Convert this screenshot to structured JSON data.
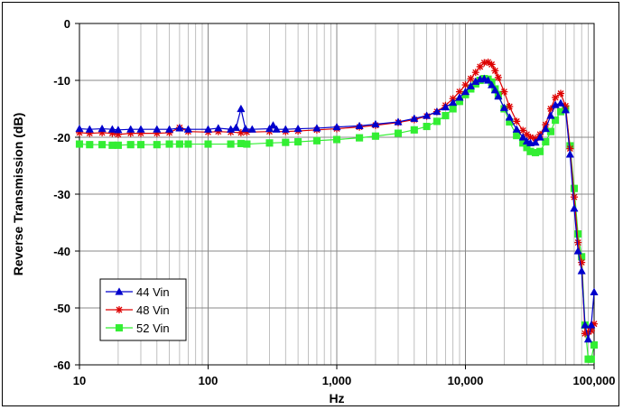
{
  "chart_data": {
    "type": "line",
    "title": "",
    "xlabel": "Hz",
    "ylabel": "Reverse Transmission (dB)",
    "x_scale": "log",
    "xlim": [
      10,
      100000
    ],
    "ylim": [
      -60,
      0
    ],
    "x_ticks": [
      10,
      100,
      1000,
      10000,
      100000
    ],
    "x_tick_labels": [
      "10",
      "100",
      "1,000",
      "10,000",
      "100,000"
    ],
    "y_ticks": [
      0,
      -10,
      -20,
      -30,
      -40,
      -50,
      -60
    ],
    "y_tick_labels": [
      "0",
      "-10",
      "-20",
      "-30",
      "-40",
      "-50",
      "-60"
    ],
    "grid": true,
    "legend_position": "bottom-left",
    "series": [
      {
        "name": "44 Vin",
        "color": "#0000cc",
        "marker": "triangle",
        "points": [
          [
            10,
            -18.5
          ],
          [
            12,
            -18.6
          ],
          [
            15,
            -18.5
          ],
          [
            18,
            -18.6
          ],
          [
            20,
            -18.7
          ],
          [
            25,
            -18.6
          ],
          [
            30,
            -18.6
          ],
          [
            40,
            -18.6
          ],
          [
            50,
            -18.6
          ],
          [
            60,
            -18.4
          ],
          [
            70,
            -18.6
          ],
          [
            100,
            -18.6
          ],
          [
            120,
            -18.4
          ],
          [
            150,
            -18.6
          ],
          [
            165,
            -18.3
          ],
          [
            180,
            -15.0
          ],
          [
            195,
            -18.5
          ],
          [
            220,
            -18.6
          ],
          [
            300,
            -18.5
          ],
          [
            320,
            -17.9
          ],
          [
            340,
            -18.6
          ],
          [
            400,
            -18.6
          ],
          [
            500,
            -18.5
          ],
          [
            700,
            -18.4
          ],
          [
            1000,
            -18.2
          ],
          [
            1500,
            -18.0
          ],
          [
            2000,
            -17.7
          ],
          [
            3000,
            -17.3
          ],
          [
            4000,
            -16.7
          ],
          [
            5000,
            -16.2
          ],
          [
            6000,
            -15.5
          ],
          [
            7000,
            -14.7
          ],
          [
            8000,
            -13.9
          ],
          [
            9000,
            -13.0
          ],
          [
            10000,
            -12.0
          ],
          [
            11000,
            -11.0
          ],
          [
            12000,
            -10.2
          ],
          [
            13000,
            -9.8
          ],
          [
            14000,
            -9.7
          ],
          [
            15000,
            -10.0
          ],
          [
            16000,
            -10.8
          ],
          [
            17000,
            -11.7
          ],
          [
            18000,
            -12.8
          ],
          [
            20000,
            -14.8
          ],
          [
            22000,
            -16.5
          ],
          [
            25000,
            -18.6
          ],
          [
            28000,
            -20.0
          ],
          [
            30000,
            -20.7
          ],
          [
            32000,
            -21.0
          ],
          [
            35000,
            -20.9
          ],
          [
            38000,
            -20.0
          ],
          [
            42000,
            -18.5
          ],
          [
            46000,
            -16.2
          ],
          [
            50000,
            -14.3
          ],
          [
            55000,
            -14.0
          ],
          [
            60000,
            -15.2
          ],
          [
            65000,
            -23.0
          ],
          [
            70000,
            -32.5
          ],
          [
            75000,
            -40.0
          ],
          [
            80000,
            -43.5
          ],
          [
            85000,
            -53.0
          ],
          [
            90000,
            -55.5
          ],
          [
            95000,
            -53.0
          ],
          [
            100000,
            -47.2
          ]
        ]
      },
      {
        "name": "48 Vin",
        "color": "#dd0000",
        "marker": "asterisk",
        "points": [
          [
            10,
            -19.2
          ],
          [
            12,
            -19.3
          ],
          [
            15,
            -19.2
          ],
          [
            18,
            -19.3
          ],
          [
            20,
            -19.5
          ],
          [
            25,
            -19.3
          ],
          [
            30,
            -19.3
          ],
          [
            40,
            -19.3
          ],
          [
            50,
            -19.2
          ],
          [
            60,
            -18.3
          ],
          [
            70,
            -19.0
          ],
          [
            100,
            -19.1
          ],
          [
            120,
            -19.0
          ],
          [
            150,
            -19.1
          ],
          [
            180,
            -19.2
          ],
          [
            200,
            -19.1
          ],
          [
            300,
            -19.0
          ],
          [
            400,
            -19.0
          ],
          [
            500,
            -18.9
          ],
          [
            700,
            -18.7
          ],
          [
            1000,
            -18.5
          ],
          [
            1500,
            -18.2
          ],
          [
            2000,
            -17.9
          ],
          [
            3000,
            -17.4
          ],
          [
            4000,
            -16.9
          ],
          [
            5000,
            -16.3
          ],
          [
            6000,
            -15.5
          ],
          [
            7000,
            -14.4
          ],
          [
            8000,
            -13.2
          ],
          [
            9000,
            -12.0
          ],
          [
            10000,
            -10.8
          ],
          [
            11000,
            -9.7
          ],
          [
            12000,
            -8.6
          ],
          [
            13000,
            -7.6
          ],
          [
            14000,
            -6.9
          ],
          [
            15000,
            -6.8
          ],
          [
            16000,
            -7.2
          ],
          [
            17000,
            -8.3
          ],
          [
            18000,
            -9.5
          ],
          [
            20000,
            -12.0
          ],
          [
            22000,
            -14.6
          ],
          [
            25000,
            -17.2
          ],
          [
            28000,
            -18.8
          ],
          [
            30000,
            -19.5
          ],
          [
            32000,
            -20.0
          ],
          [
            35000,
            -20.2
          ],
          [
            38000,
            -19.5
          ],
          [
            42000,
            -17.8
          ],
          [
            46000,
            -15.0
          ],
          [
            50000,
            -13.0
          ],
          [
            55000,
            -12.3
          ],
          [
            60000,
            -14.5
          ],
          [
            65000,
            -22.0
          ],
          [
            70000,
            -30.5
          ],
          [
            75000,
            -38.5
          ],
          [
            80000,
            -42.0
          ],
          [
            85000,
            -54.5
          ],
          [
            90000,
            -54.2
          ],
          [
            95000,
            -54.0
          ],
          [
            100000,
            -52.8
          ]
        ]
      },
      {
        "name": "52 Vin",
        "color": "#33ee33",
        "marker": "square",
        "points": [
          [
            10,
            -21.2
          ],
          [
            12,
            -21.3
          ],
          [
            15,
            -21.3
          ],
          [
            18,
            -21.4
          ],
          [
            20,
            -21.4
          ],
          [
            25,
            -21.3
          ],
          [
            30,
            -21.3
          ],
          [
            40,
            -21.3
          ],
          [
            50,
            -21.2
          ],
          [
            60,
            -21.2
          ],
          [
            70,
            -21.2
          ],
          [
            100,
            -21.2
          ],
          [
            150,
            -21.2
          ],
          [
            180,
            -21.1
          ],
          [
            200,
            -21.2
          ],
          [
            300,
            -21.0
          ],
          [
            400,
            -20.9
          ],
          [
            500,
            -20.8
          ],
          [
            700,
            -20.6
          ],
          [
            1000,
            -20.4
          ],
          [
            1500,
            -20.1
          ],
          [
            2000,
            -19.8
          ],
          [
            3000,
            -19.3
          ],
          [
            4000,
            -18.7
          ],
          [
            5000,
            -18.1
          ],
          [
            6000,
            -17.2
          ],
          [
            7000,
            -16.2
          ],
          [
            8000,
            -15.0
          ],
          [
            9000,
            -13.7
          ],
          [
            10000,
            -12.5
          ],
          [
            11000,
            -11.5
          ],
          [
            12000,
            -10.6
          ],
          [
            13000,
            -10.0
          ],
          [
            14000,
            -9.7
          ],
          [
            15000,
            -9.8
          ],
          [
            16000,
            -10.3
          ],
          [
            17000,
            -11.5
          ],
          [
            18000,
            -12.5
          ],
          [
            20000,
            -15.0
          ],
          [
            22000,
            -17.3
          ],
          [
            25000,
            -19.7
          ],
          [
            28000,
            -21.0
          ],
          [
            30000,
            -21.8
          ],
          [
            32000,
            -22.5
          ],
          [
            35000,
            -22.7
          ],
          [
            38000,
            -22.5
          ],
          [
            42000,
            -20.8
          ],
          [
            46000,
            -19.0
          ],
          [
            50000,
            -17.0
          ],
          [
            55000,
            -15.5
          ],
          [
            60000,
            -15.0
          ],
          [
            65000,
            -21.5
          ],
          [
            70000,
            -29.0
          ],
          [
            75000,
            -37.0
          ],
          [
            80000,
            -41.0
          ],
          [
            85000,
            -53.0
          ],
          [
            90000,
            -59.0
          ],
          [
            95000,
            -59.0
          ],
          [
            100000,
            -56.5
          ]
        ]
      }
    ]
  }
}
